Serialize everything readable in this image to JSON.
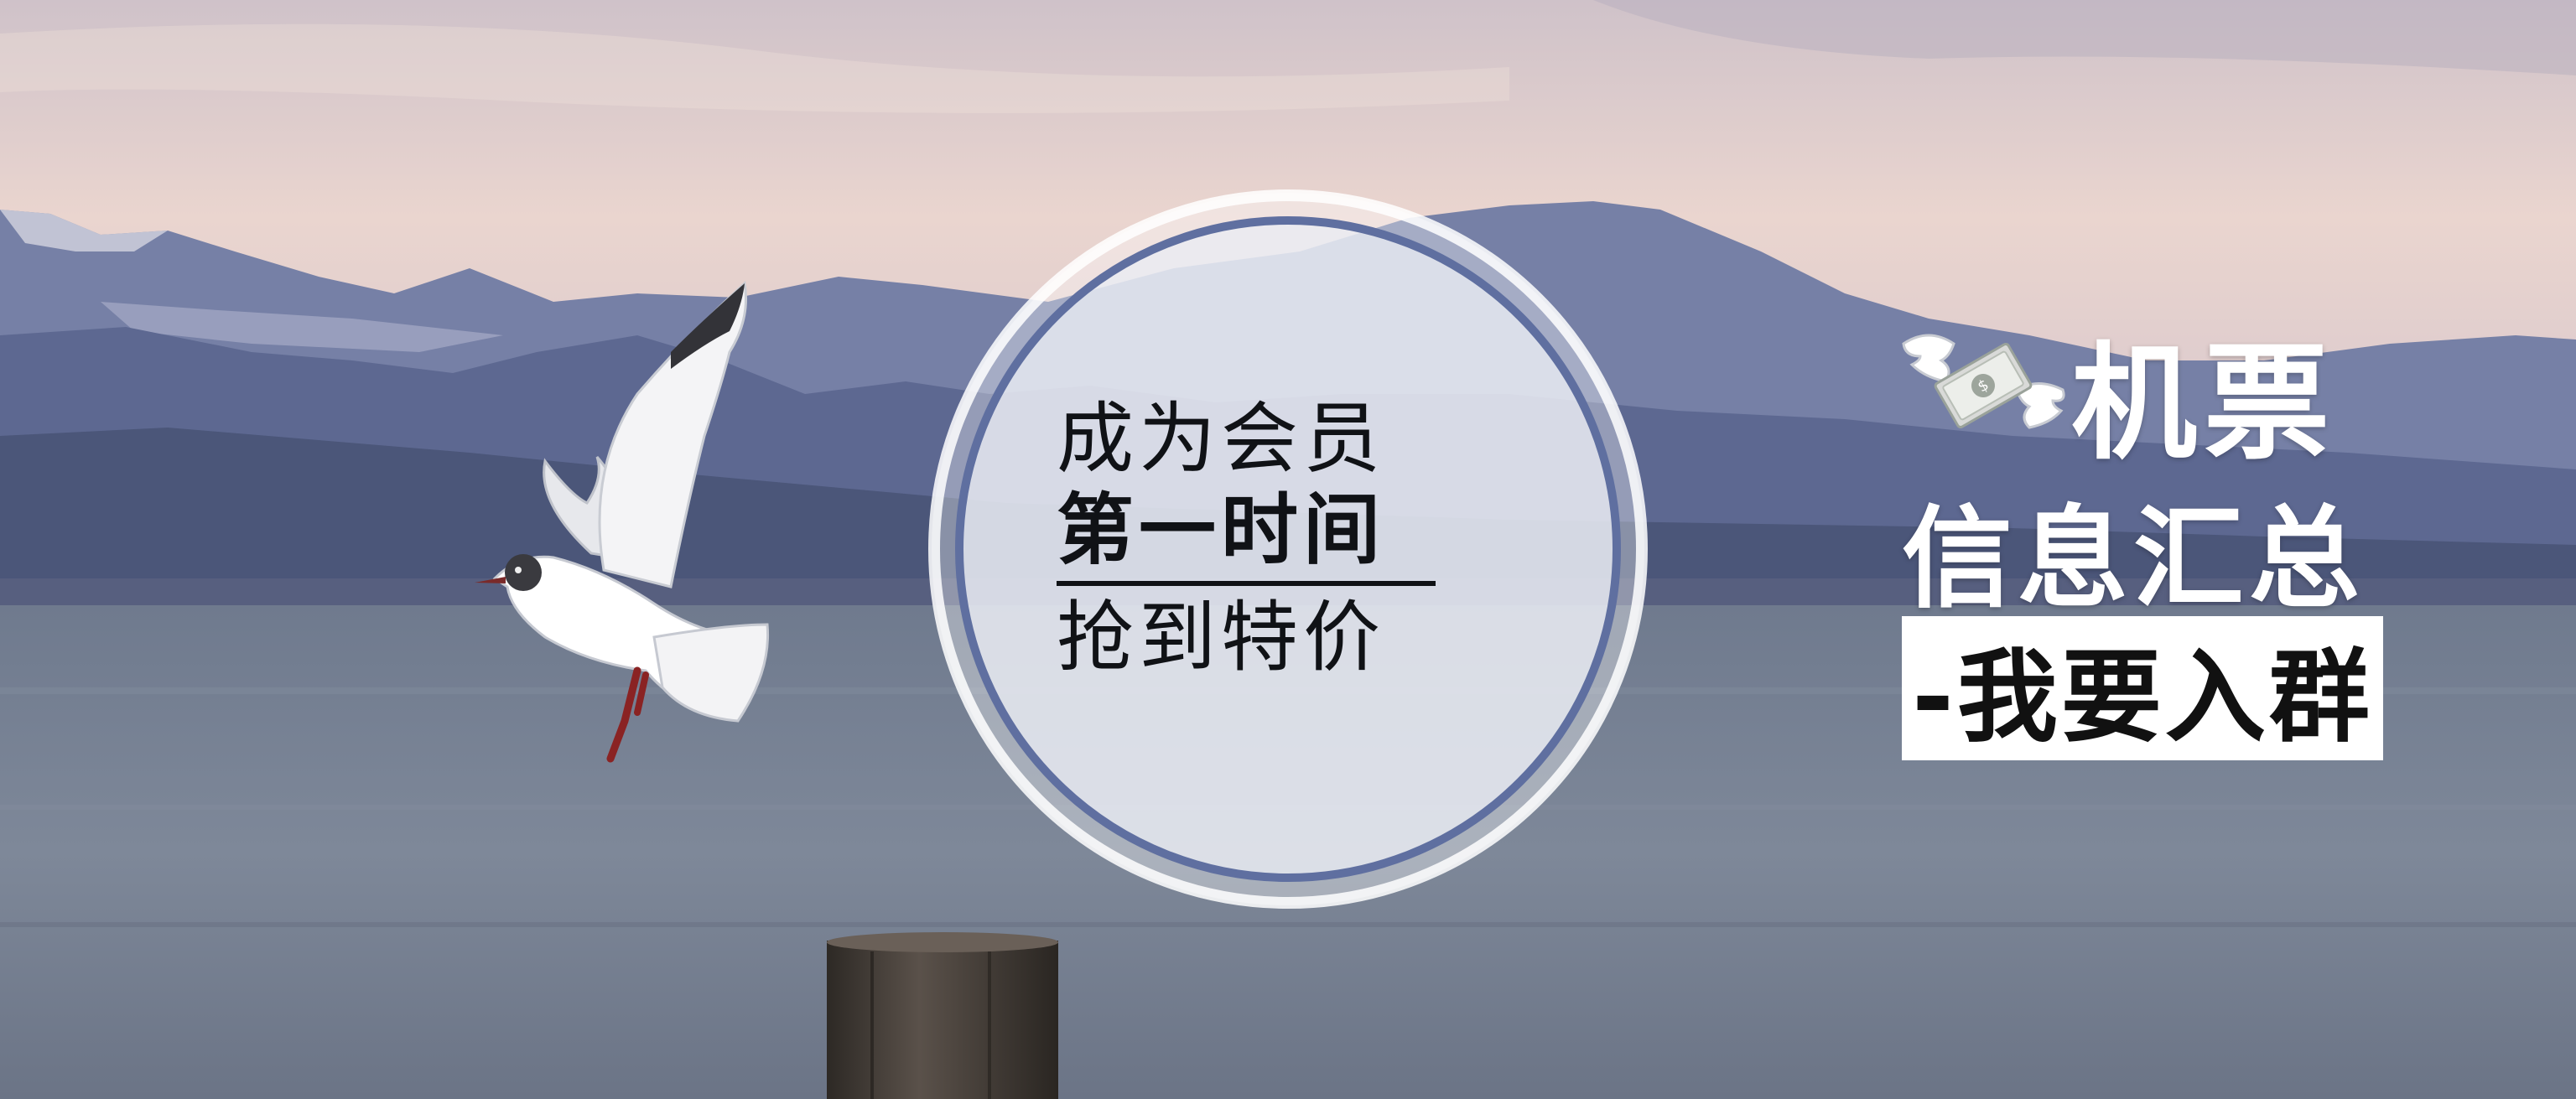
{
  "circle": {
    "line1": "成为会员",
    "line2": "第一时间",
    "line3": "抢到特价"
  },
  "promo": {
    "title": "机票",
    "subtitle": "信息汇总",
    "join_label": "-我要入群",
    "icon": "money-with-wings-icon"
  },
  "colors": {
    "sky_top": "#d9c7c8",
    "mountain": "#5c6a97",
    "water": "#7f8a99",
    "circle_ring": "#5f6fa0",
    "circle_fill": "#e9ecf3"
  }
}
